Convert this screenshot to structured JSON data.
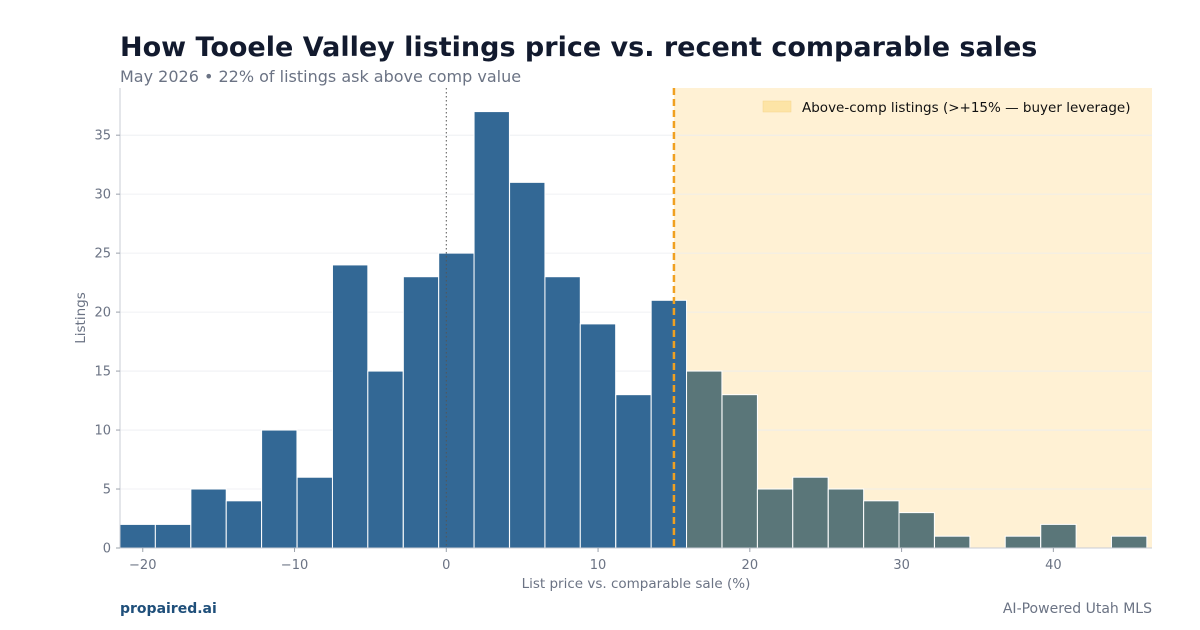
{
  "header": {
    "title": "How Tooele Valley listings price vs. recent comparable sales",
    "subtitle": "May 2026 • 22% of listings ask above comp value"
  },
  "footer": {
    "brand": "propaired.ai",
    "tagline": "AI-Powered Utah MLS"
  },
  "colors": {
    "bar_below": "#336895",
    "bar_above": "#5a7679",
    "shade": "#fff1d4",
    "threshold_line": "#f0a020",
    "zero_line": "#555555",
    "axis_text": "#6b7384"
  },
  "chart_data": {
    "type": "bar",
    "title": "How Tooele Valley listings price vs. recent comparable sales",
    "subtitle": "May 2026 • 22% of listings ask above comp value",
    "xlabel": "List price vs. comparable sale (%)",
    "ylabel": "Listings",
    "bin_width": 2.33,
    "bins": [
      {
        "start": -21.5,
        "count": 2
      },
      {
        "start": -19.17,
        "count": 2
      },
      {
        "start": -16.83,
        "count": 5
      },
      {
        "start": -14.5,
        "count": 4
      },
      {
        "start": -12.17,
        "count": 10
      },
      {
        "start": -9.83,
        "count": 6
      },
      {
        "start": -7.5,
        "count": 24
      },
      {
        "start": -5.17,
        "count": 15
      },
      {
        "start": -2.83,
        "count": 23
      },
      {
        "start": -0.5,
        "count": 25
      },
      {
        "start": 1.83,
        "count": 37
      },
      {
        "start": 4.17,
        "count": 31
      },
      {
        "start": 6.5,
        "count": 23
      },
      {
        "start": 8.83,
        "count": 19
      },
      {
        "start": 11.17,
        "count": 13
      },
      {
        "start": 13.5,
        "count": 21
      },
      {
        "start": 15.83,
        "count": 15
      },
      {
        "start": 18.17,
        "count": 13
      },
      {
        "start": 20.5,
        "count": 5
      },
      {
        "start": 22.83,
        "count": 6
      },
      {
        "start": 25.17,
        "count": 5
      },
      {
        "start": 27.5,
        "count": 4
      },
      {
        "start": 29.83,
        "count": 3
      },
      {
        "start": 32.17,
        "count": 1
      },
      {
        "start": 34.5,
        "count": 0
      },
      {
        "start": 36.83,
        "count": 1
      },
      {
        "start": 39.17,
        "count": 2
      },
      {
        "start": 41.5,
        "count": 0
      },
      {
        "start": 43.83,
        "count": 1
      }
    ],
    "xlim": [
      -21.5,
      46.5
    ],
    "ylim": [
      0,
      39
    ],
    "xticks": [
      -20,
      -10,
      0,
      10,
      20,
      30,
      40
    ],
    "yticks": [
      0,
      5,
      10,
      15,
      20,
      25,
      30,
      35
    ],
    "zero_reference": 0,
    "threshold": 15,
    "legend": {
      "label": "Above-comp listings (>+15% — buyer leverage)",
      "placement": "top-right"
    },
    "grid": true
  }
}
